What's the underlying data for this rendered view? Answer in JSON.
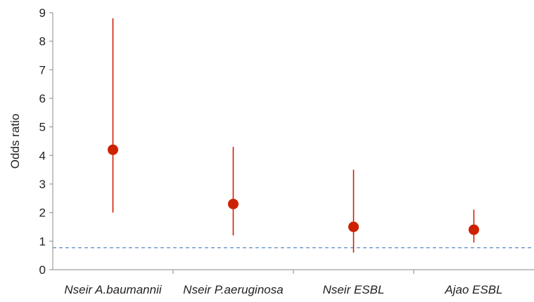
{
  "chart_data": {
    "type": "scatter",
    "title": "",
    "xlabel": "",
    "ylabel": "Odds ratio",
    "ylim": [
      0,
      9
    ],
    "yticks": [
      0,
      1,
      2,
      3,
      4,
      5,
      6,
      7,
      8,
      9
    ],
    "grid": false,
    "legend": "none",
    "categories": [
      "Nseir A.baumannii",
      "Nseir P.aeruginosa",
      "Nseir ESBL",
      "Ajao ESBL"
    ],
    "points": [
      {
        "category": "Nseir A.baumannii",
        "or": 4.2,
        "ci_low": 2.0,
        "ci_high": 8.8
      },
      {
        "category": "Nseir P.aeruginosa",
        "or": 2.3,
        "ci_low": 1.2,
        "ci_high": 4.3
      },
      {
        "category": "Nseir ESBL",
        "or": 1.5,
        "ci_low": 0.6,
        "ci_high": 3.5
      },
      {
        "category": "Ajao ESBL",
        "or": 1.4,
        "ci_low": 0.95,
        "ci_high": 2.1
      }
    ],
    "reference_line": {
      "value": 0.77,
      "style": "dashed"
    },
    "colors": {
      "marker": "#cc2200",
      "error_bar": "#cc2200",
      "reference_line": "#6a94c4",
      "axis": "#888888"
    }
  }
}
